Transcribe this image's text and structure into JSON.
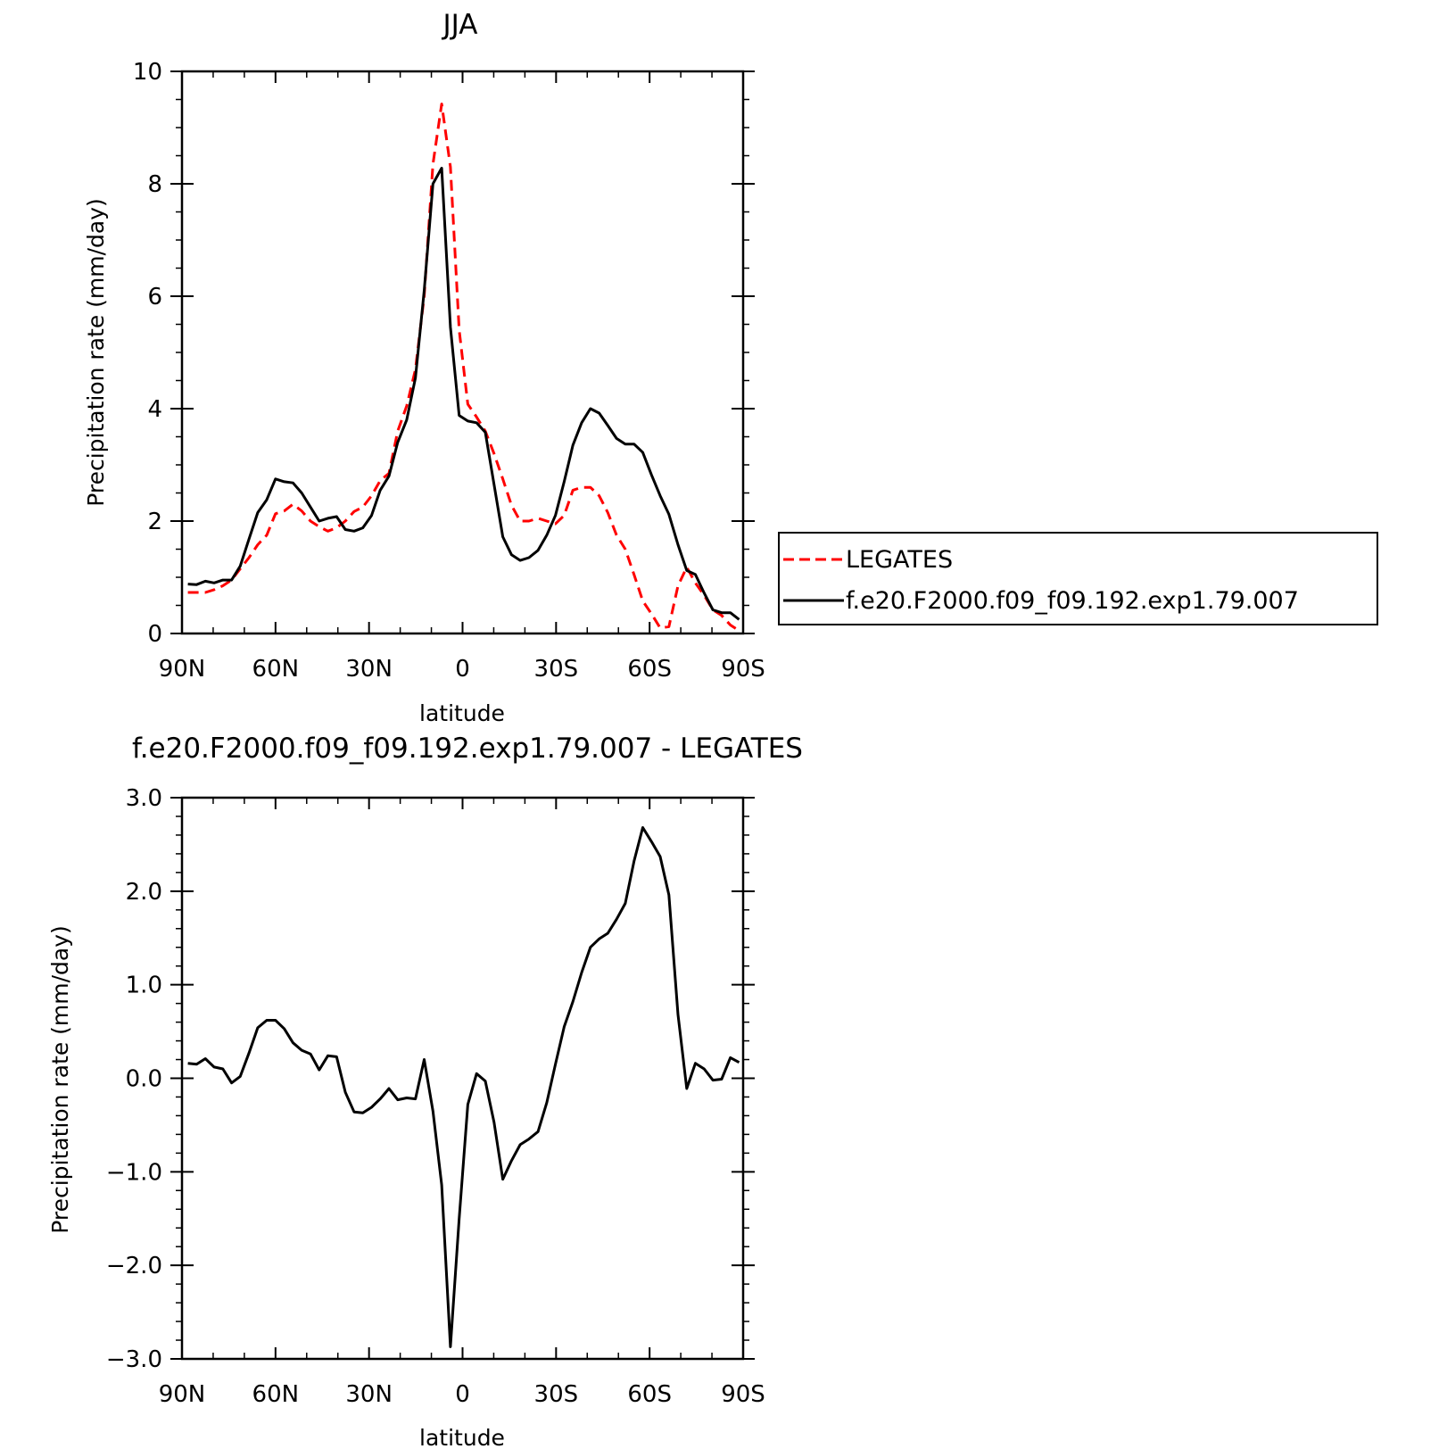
{
  "chart_data": [
    {
      "type": "line",
      "title": "JJA",
      "xlabel": "latitude",
      "ylabel": "Precipitation rate (mm/day)",
      "xlim": [
        90,
        -90
      ],
      "ylim": [
        0,
        10
      ],
      "xtick_values": [
        90,
        60,
        30,
        0,
        -30,
        -60,
        -90
      ],
      "xtick_labels": [
        "90N",
        "60N",
        "30N",
        "0",
        "30S",
        "60S",
        "90S"
      ],
      "ytick_values": [
        0,
        2,
        4,
        6,
        8,
        10
      ],
      "ytick_labels": [
        "0",
        "2",
        "4",
        "6",
        "8",
        "10"
      ],
      "legend_position": "right",
      "x": [
        88.1,
        85.3,
        82.5,
        79.7,
        76.9,
        74.1,
        71.3,
        68.5,
        65.7,
        62.8,
        60.0,
        57.2,
        54.4,
        51.6,
        48.8,
        46.0,
        43.2,
        40.4,
        37.6,
        34.8,
        32.0,
        29.2,
        26.4,
        23.6,
        20.8,
        17.9,
        15.1,
        12.3,
        9.5,
        6.7,
        3.9,
        1.1,
        -1.7,
        -4.5,
        -7.3,
        -10.1,
        -12.9,
        -15.7,
        -18.5,
        -21.3,
        -24.2,
        -27.0,
        -29.8,
        -32.6,
        -35.4,
        -38.2,
        -41.0,
        -43.8,
        -46.6,
        -49.4,
        -52.2,
        -55.0,
        -57.8,
        -60.6,
        -63.4,
        -66.2,
        -69.1,
        -71.9,
        -74.7,
        -77.5,
        -80.3,
        -83.1,
        -85.9,
        -88.7
      ],
      "series": [
        {
          "name": "LEGATES",
          "color": "#ff0000",
          "style": "dashed",
          "values": [
            0.73,
            0.73,
            0.73,
            0.78,
            0.85,
            0.95,
            1.15,
            1.35,
            1.58,
            1.75,
            2.13,
            2.18,
            2.3,
            2.18,
            2.0,
            1.9,
            1.82,
            1.88,
            2.0,
            2.17,
            2.25,
            2.45,
            2.72,
            2.85,
            3.6,
            4.05,
            4.7,
            6.0,
            8.35,
            9.42,
            8.3,
            5.4,
            4.08,
            3.85,
            3.6,
            3.2,
            2.75,
            2.28,
            2.0,
            2.0,
            2.05,
            2.0,
            1.95,
            2.1,
            2.55,
            2.6,
            2.6,
            2.45,
            2.15,
            1.75,
            1.5,
            1.05,
            0.58,
            0.35,
            0.1,
            0.12,
            0.85,
            1.18,
            0.9,
            0.68,
            0.42,
            0.32,
            0.15,
            0.05
          ]
        },
        {
          "name": "f.e20.F2000.f09_f09.192.exp1.79.007",
          "color": "#000000",
          "style": "solid",
          "values": [
            0.88,
            0.87,
            0.93,
            0.9,
            0.95,
            0.95,
            1.2,
            1.68,
            2.15,
            2.38,
            2.75,
            2.7,
            2.68,
            2.5,
            2.25,
            2.0,
            2.05,
            2.08,
            1.85,
            1.82,
            1.88,
            2.1,
            2.55,
            2.8,
            3.4,
            3.8,
            4.55,
            6.1,
            8.0,
            8.28,
            5.45,
            3.88,
            3.78,
            3.75,
            3.58,
            2.65,
            1.72,
            1.4,
            1.3,
            1.35,
            1.48,
            1.75,
            2.1,
            2.7,
            3.35,
            3.75,
            4.0,
            3.92,
            3.7,
            3.47,
            3.37,
            3.37,
            3.22,
            2.82,
            2.45,
            2.12,
            1.58,
            1.12,
            1.05,
            0.72,
            0.42,
            0.37,
            0.37,
            0.25
          ]
        }
      ]
    },
    {
      "type": "line",
      "title": "f.e20.F2000.f09_f09.192.exp1.79.007 - LEGATES",
      "xlabel": "latitude",
      "ylabel": "Precipitation rate (mm/day)",
      "xlim": [
        90,
        -90
      ],
      "ylim": [
        -3.0,
        3.0
      ],
      "xtick_values": [
        90,
        60,
        30,
        0,
        -30,
        -60,
        -90
      ],
      "xtick_labels": [
        "90N",
        "60N",
        "30N",
        "0",
        "30S",
        "60S",
        "90S"
      ],
      "ytick_values": [
        -3.0,
        -2.0,
        -1.0,
        0.0,
        1.0,
        2.0,
        3.0
      ],
      "ytick_labels": [
        "−3.0",
        "−2.0",
        "−1.0",
        "0.0",
        "1.0",
        "2.0",
        "3.0"
      ],
      "x": [
        88.1,
        85.3,
        82.5,
        79.7,
        76.9,
        74.1,
        71.3,
        68.5,
        65.7,
        62.8,
        60.0,
        57.2,
        54.4,
        51.6,
        48.8,
        46.0,
        43.2,
        40.4,
        37.6,
        34.8,
        32.0,
        29.2,
        26.4,
        23.6,
        20.8,
        17.9,
        15.1,
        12.3,
        9.5,
        6.7,
        3.9,
        1.1,
        -1.7,
        -4.5,
        -7.3,
        -10.1,
        -12.9,
        -15.7,
        -18.5,
        -21.3,
        -24.2,
        -27.0,
        -29.8,
        -32.6,
        -35.4,
        -38.2,
        -41.0,
        -43.8,
        -46.6,
        -49.4,
        -52.2,
        -55.0,
        -57.8,
        -60.6,
        -63.4,
        -66.2,
        -69.1,
        -71.9,
        -74.7,
        -77.5,
        -80.3,
        -83.1,
        -85.9,
        -88.7
      ],
      "series": [
        {
          "color": "#000000",
          "style": "solid",
          "values": [
            0.16,
            0.15,
            0.21,
            0.12,
            0.1,
            -0.05,
            0.02,
            0.27,
            0.54,
            0.62,
            0.62,
            0.53,
            0.38,
            0.3,
            0.26,
            0.09,
            0.24,
            0.23,
            -0.15,
            -0.36,
            -0.37,
            -0.31,
            -0.22,
            -0.11,
            -0.23,
            -0.21,
            -0.22,
            0.2,
            -0.35,
            -1.14,
            -2.87,
            -1.5,
            -0.28,
            0.05,
            -0.03,
            -0.47,
            -1.08,
            -0.88,
            -0.71,
            -0.65,
            -0.57,
            -0.26,
            0.15,
            0.55,
            0.82,
            1.13,
            1.4,
            1.49,
            1.55,
            1.7,
            1.87,
            2.32,
            2.68,
            2.53,
            2.37,
            1.96,
            0.68,
            -0.11,
            0.16,
            0.1,
            -0.02,
            -0.01,
            0.22,
            0.17
          ]
        }
      ]
    }
  ]
}
